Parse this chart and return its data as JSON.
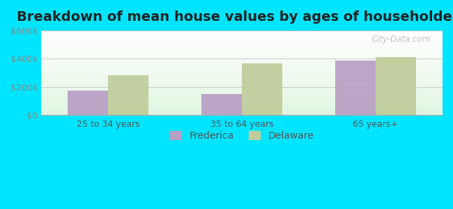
{
  "title": "Breakdown of mean house values by ages of householders",
  "categories": [
    "25 to 34 years",
    "35 to 64 years",
    "65 years+"
  ],
  "frederica_values": [
    175000,
    150000,
    385000
  ],
  "delaware_values": [
    280000,
    365000,
    410000
  ],
  "frederica_color": "#b89ec4",
  "delaware_color": "#bfcc9a",
  "ylim": [
    0,
    600000
  ],
  "yticks": [
    0,
    200000,
    400000,
    600000
  ],
  "ytick_labels": [
    "$0",
    "$200k",
    "$400k",
    "$600k"
  ],
  "legend_labels": [
    "Frederica",
    "Delaware"
  ],
  "background_outer": "#00e5ff",
  "title_fontsize": 14,
  "watermark": "City-Data.com"
}
